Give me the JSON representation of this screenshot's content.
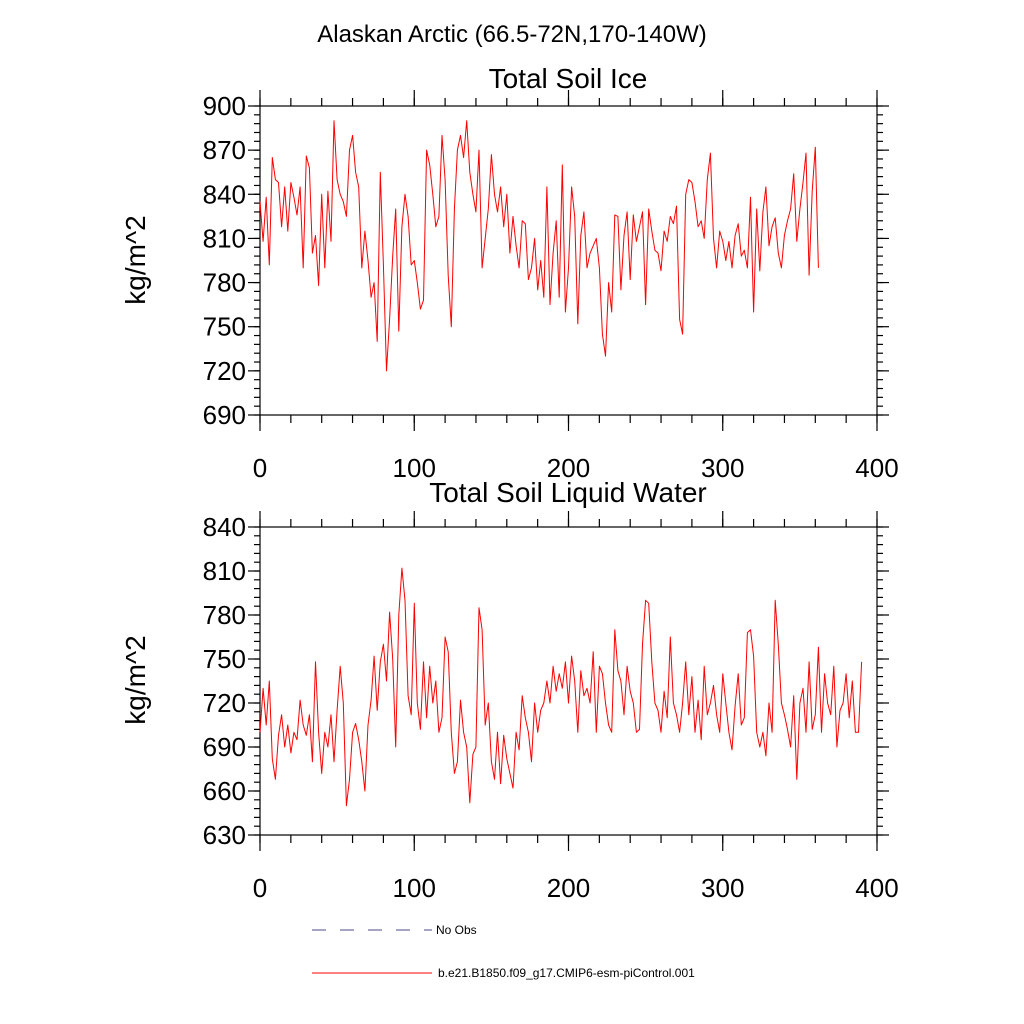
{
  "suptitle": "Alaskan Arctic (66.5-72N,170-140W)",
  "legend": {
    "obs_label": "No Obs",
    "obs_color": "#4a4a8a",
    "model_label": "b.e21.B1850.f09_g17.CMIP6-esm-piControl.001",
    "model_color": "#ff0000"
  },
  "chart_data": [
    {
      "type": "line",
      "title": "Total Soil Ice",
      "ylabel": "kg/m^2",
      "xlabel": "",
      "xlim": [
        0,
        400
      ],
      "ylim": [
        690,
        900
      ],
      "xticks": [
        0,
        100,
        200,
        300,
        400
      ],
      "yticks": [
        690,
        720,
        750,
        780,
        810,
        840,
        870,
        900
      ],
      "xtick_labels": [
        "0",
        "100",
        "200",
        "300",
        "400"
      ],
      "ytick_labels": [
        "690",
        "720",
        "750",
        "780",
        "810",
        "840",
        "870",
        "900"
      ],
      "grid": false,
      "series": [
        {
          "name": "b.e21.B1850.f09_g17.CMIP6-esm-piControl.001",
          "color": "#ff0000",
          "x_start": 0,
          "x_step": 2,
          "values": [
            835,
            808,
            838,
            792,
            865,
            850,
            848,
            818,
            845,
            815,
            848,
            838,
            826,
            845,
            790,
            866,
            858,
            800,
            812,
            778,
            840,
            790,
            842,
            808,
            890,
            850,
            840,
            835,
            825,
            870,
            880,
            855,
            845,
            790,
            815,
            795,
            770,
            780,
            740,
            855,
            792,
            720,
            755,
            798,
            830,
            747,
            818,
            840,
            825,
            792,
            795,
            780,
            762,
            768,
            870,
            860,
            840,
            818,
            825,
            880,
            850,
            785,
            750,
            830,
            870,
            880,
            865,
            890,
            855,
            840,
            828,
            870,
            790,
            810,
            830,
            867,
            840,
            828,
            845,
            818,
            840,
            800,
            825,
            805,
            790,
            822,
            820,
            782,
            790,
            810,
            775,
            795,
            770,
            845,
            765,
            800,
            822,
            770,
            860,
            760,
            790,
            845,
            825,
            752,
            812,
            828,
            790,
            800,
            805,
            810,
            790,
            745,
            730,
            780,
            760,
            826,
            825,
            775,
            812,
            828,
            782,
            826,
            808,
            818,
            828,
            765,
            830,
            815,
            802,
            800,
            788,
            815,
            808,
            825,
            820,
            832,
            755,
            745,
            840,
            850,
            848,
            835,
            818,
            822,
            810,
            850,
            868,
            810,
            790,
            815,
            808,
            795,
            808,
            790,
            812,
            820,
            798,
            802,
            790,
            838,
            760,
            830,
            788,
            828,
            845,
            805,
            818,
            824,
            800,
            790,
            812,
            822,
            830,
            854,
            808,
            830,
            848,
            868,
            785,
            842,
            872,
            790
          ]
        }
      ]
    },
    {
      "type": "line",
      "title": "Total Soil Liquid Water",
      "ylabel": "kg/m^2",
      "xlabel": "",
      "xlim": [
        0,
        400
      ],
      "ylim": [
        630,
        840
      ],
      "xticks": [
        0,
        100,
        200,
        300,
        400
      ],
      "yticks": [
        630,
        660,
        690,
        720,
        750,
        780,
        810,
        840
      ],
      "xtick_labels": [
        "0",
        "100",
        "200",
        "300",
        "400"
      ],
      "ytick_labels": [
        "630",
        "660",
        "690",
        "720",
        "750",
        "780",
        "810",
        "840"
      ],
      "grid": false,
      "series": [
        {
          "name": "b.e21.B1850.f09_g17.CMIP6-esm-piControl.001",
          "color": "#ff0000",
          "x_start": 0,
          "x_step": 2,
          "values": [
            700,
            730,
            705,
            735,
            682,
            668,
            698,
            712,
            690,
            705,
            686,
            700,
            695,
            722,
            705,
            698,
            712,
            680,
            748,
            700,
            672,
            700,
            690,
            712,
            680,
            715,
            745,
            720,
            650,
            668,
            700,
            706,
            695,
            680,
            660,
            705,
            722,
            752,
            715,
            748,
            760,
            735,
            782,
            750,
            690,
            780,
            812,
            790,
            725,
            712,
            788,
            720,
            702,
            748,
            710,
            745,
            720,
            735,
            700,
            710,
            765,
            755,
            700,
            672,
            680,
            722,
            700,
            690,
            652,
            685,
            690,
            785,
            770,
            705,
            720,
            680,
            668,
            700,
            665,
            698,
            682,
            672,
            662,
            700,
            688,
            725,
            710,
            700,
            680,
            720,
            700,
            715,
            720,
            735,
            720,
            745,
            728,
            740,
            730,
            748,
            720,
            752,
            735,
            700,
            742,
            725,
            730,
            720,
            755,
            700,
            745,
            740,
            720,
            705,
            700,
            770,
            742,
            735,
            712,
            745,
            728,
            720,
            700,
            702,
            760,
            790,
            788,
            748,
            720,
            715,
            700,
            728,
            710,
            765,
            720,
            712,
            700,
            720,
            748,
            712,
            738,
            700,
            722,
            695,
            745,
            712,
            720,
            732,
            712,
            700,
            740,
            720,
            700,
            688,
            718,
            740,
            705,
            710,
            768,
            770,
            752,
            700,
            690,
            700,
            684,
            720,
            700,
            790,
            760,
            720,
            712,
            702,
            690,
            725,
            668,
            720,
            730,
            700,
            748,
            702,
            712,
            758,
            700,
            740,
            720,
            712,
            745,
            690,
            715,
            720,
            740,
            710,
            735,
            700,
            700,
            748
          ]
        }
      ]
    }
  ]
}
